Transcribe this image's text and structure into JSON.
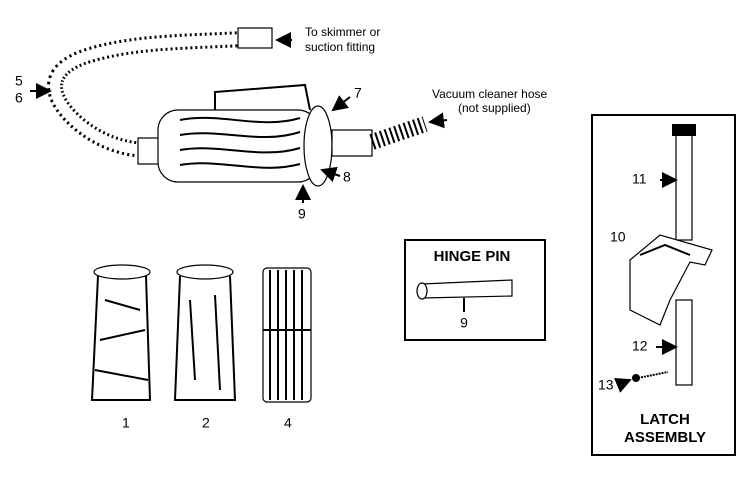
{
  "main_assembly": {
    "skimmer_note": [
      "To skimmer or",
      "suction fitting"
    ],
    "hose_note": [
      "Vacuum cleaner hose",
      "(not supplied)"
    ],
    "callouts": [
      "5",
      "6",
      "7",
      "8",
      "9"
    ]
  },
  "hinge_pin": {
    "title": "HINGE PIN",
    "callout": "9"
  },
  "filters": [
    "1",
    "2",
    "4"
  ],
  "latch_assembly": {
    "title": [
      "LATCH",
      "ASSEMBLY"
    ],
    "callouts": [
      "11",
      "10",
      "12",
      "13"
    ]
  }
}
